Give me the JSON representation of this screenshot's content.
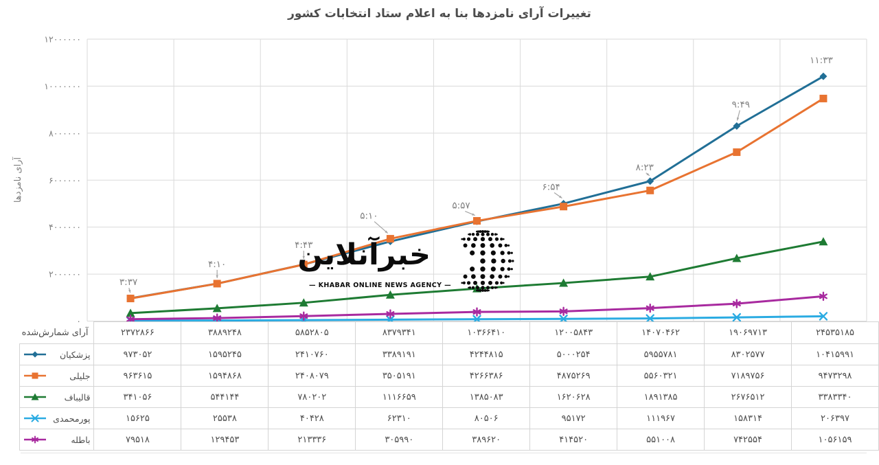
{
  "title": "تغییرات آرای نامزدها بنا به اعلام ستاد انتخابات کشور",
  "y_axis": {
    "label": "آرای نامزدها"
  },
  "watermark": {
    "persian": "خبرآنلاین",
    "latin": "— KHABAR ONLINE NEWS AGENCY —"
  },
  "table": {
    "counted_label": "آرای شمارش‌شده"
  },
  "chart_data": {
    "type": "line",
    "title": "تغییرات آرای نامزدها بنا به اعلام ستاد انتخابات کشور",
    "xlabel": "",
    "ylabel": "آرای نامزدها",
    "ylim": [
      0,
      12000000
    ],
    "ytick_step": 2000000,
    "grid": true,
    "digits": "persian",
    "legend_position": "table-rows-left",
    "x_categories_counted_votes": [
      2372866,
      3889248,
      5852805,
      8379341,
      10366410,
      12005843,
      14070462,
      19069713,
      24535185
    ],
    "point_time_labels": [
      "۳:۳۷",
      "۴:۱۰",
      "۴:۴۳",
      "۵:۱۰",
      "۵:۵۷",
      "۶:۵۴",
      "۸:۲۳",
      "۹:۴۹",
      "۱۱:۳۳"
    ],
    "series": [
      {
        "name": "پزشکیان",
        "marker": "diamond",
        "color": "#216f96",
        "values": [
          973052,
          1595245,
          2410760,
          3389191,
          4244815,
          5000254,
          5955781,
          8302577,
          10415991
        ]
      },
      {
        "name": "جلیلی",
        "marker": "square",
        "color": "#e87331",
        "values": [
          963615,
          1594868,
          2408079,
          3505191,
          4266386,
          4875269,
          5560321,
          7189756,
          9473298
        ]
      },
      {
        "name": "قالیباف",
        "marker": "triangle",
        "color": "#1e7b33",
        "values": [
          341056,
          544144,
          780202,
          1116659,
          1385083,
          1620628,
          1891385,
          2676512,
          3383340
        ]
      },
      {
        "name": "پورمحمدی",
        "marker": "x",
        "color": "#2aabe2",
        "values": [
          15625,
          25538,
          40428,
          62310,
          80506,
          95172,
          111967,
          158314,
          206397
        ]
      },
      {
        "name": "باطله",
        "marker": "asterisk",
        "color": "#a82a9f",
        "values": [
          79518,
          129453,
          213336,
          305990,
          389620,
          414520,
          551008,
          742554,
          1056159
        ]
      }
    ]
  }
}
